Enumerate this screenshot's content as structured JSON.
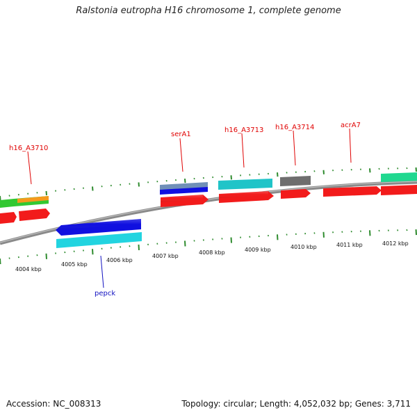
{
  "title": "Ralstonia eutropha H16 chromosome 1, complete genome",
  "footer": {
    "accession": "Accession: NC_008313",
    "summary": "Topology: circular; Length: 4,052,032 bp; Genes: 3,711"
  },
  "ticks": [
    {
      "label": "4004 kbp"
    },
    {
      "label": "4005 kbp"
    },
    {
      "label": "4006 kbp"
    },
    {
      "label": "4007 kbp"
    },
    {
      "label": "4008 kbp"
    },
    {
      "label": "4009 kbp"
    },
    {
      "label": "4010 kbp"
    },
    {
      "label": "4011 kbp"
    },
    {
      "label": "4012 kbp"
    }
  ],
  "gene_labels": [
    {
      "name": "h16_A3710",
      "color": "#e00000"
    },
    {
      "name": "serA1",
      "color": "#e00000"
    },
    {
      "name": "h16_A3713",
      "color": "#e00000"
    },
    {
      "name": "h16_A3714",
      "color": "#e00000"
    },
    {
      "name": "acrA7",
      "color": "#e00000"
    },
    {
      "name": "pepck",
      "color": "#1010c0"
    }
  ],
  "colors": {
    "backbone": "#8a8a8a",
    "tick": "#2e8b2e",
    "cds_red": "#f21b1b",
    "cds_blue": "#1010e0",
    "cds_cyan": "#22d4e0",
    "cds_teal": "#20c4c8",
    "cds_gray": "#6e6e6e",
    "cds_green": "#32c832",
    "cds_orange": "#f59a1c",
    "cds_mint": "#20d890",
    "cds_steel": "#7090b8"
  }
}
